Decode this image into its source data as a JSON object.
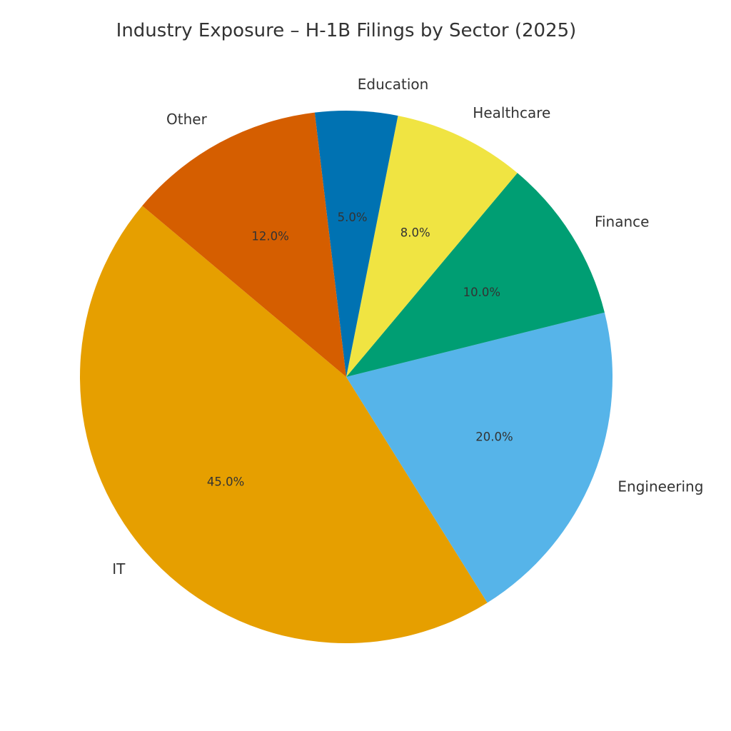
{
  "chart_data": {
    "type": "pie",
    "title": "Industry Exposure – H-1B Filings by Sector (2025)",
    "start_angle_deg": 140,
    "direction": "counterclockwise",
    "slices": [
      {
        "label": "IT",
        "value": 45.0,
        "pct_label": "45.0%",
        "color": "#E69F00"
      },
      {
        "label": "Engineering",
        "value": 20.0,
        "pct_label": "20.0%",
        "color": "#56B4E9"
      },
      {
        "label": "Finance",
        "value": 10.0,
        "pct_label": "10.0%",
        "color": "#009E73"
      },
      {
        "label": "Healthcare",
        "value": 8.0,
        "pct_label": "8.0%",
        "color": "#F0E442"
      },
      {
        "label": "Education",
        "value": 5.0,
        "pct_label": "5.0%",
        "color": "#0072B2"
      },
      {
        "label": "Other",
        "value": 12.0,
        "pct_label": "12.0%",
        "color": "#D55E00"
      }
    ]
  }
}
